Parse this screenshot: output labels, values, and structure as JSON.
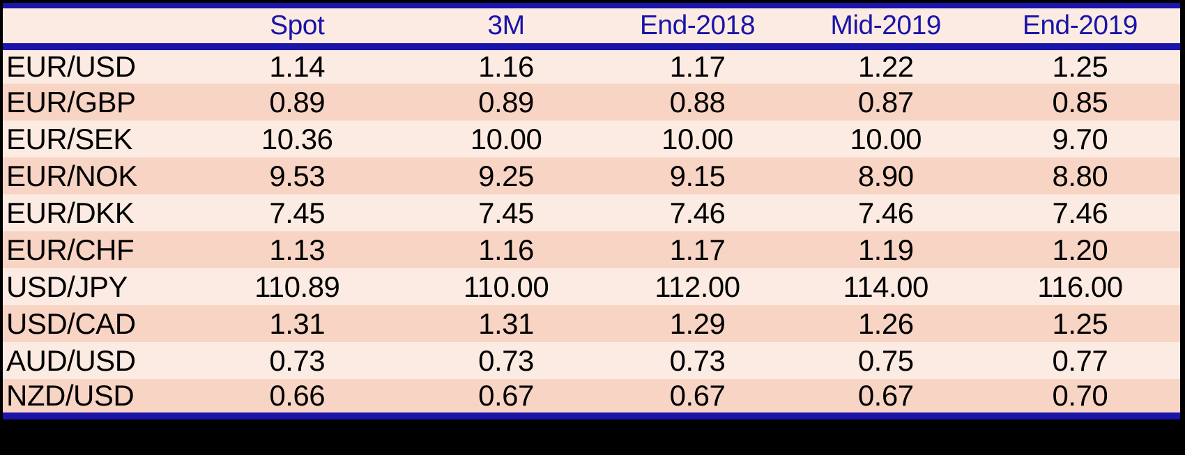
{
  "table": {
    "columns": [
      "Spot",
      "3M",
      "End-2018",
      "Mid-2019",
      "End-2019"
    ],
    "rows": [
      {
        "pair": "EUR/USD",
        "values": [
          "1.14",
          "1.16",
          "1.17",
          "1.22",
          "1.25"
        ]
      },
      {
        "pair": "EUR/GBP",
        "values": [
          "0.89",
          "0.89",
          "0.88",
          "0.87",
          "0.85"
        ]
      },
      {
        "pair": "EUR/SEK",
        "values": [
          "10.36",
          "10.00",
          "10.00",
          "10.00",
          "9.70"
        ]
      },
      {
        "pair": "EUR/NOK",
        "values": [
          "9.53",
          "9.25",
          "9.15",
          "8.90",
          "8.80"
        ]
      },
      {
        "pair": "EUR/DKK",
        "values": [
          "7.45",
          "7.45",
          "7.46",
          "7.46",
          "7.46"
        ]
      },
      {
        "pair": "EUR/CHF",
        "values": [
          "1.13",
          "1.16",
          "1.17",
          "1.19",
          "1.20"
        ]
      },
      {
        "pair": "USD/JPY",
        "values": [
          "110.89",
          "110.00",
          "112.00",
          "114.00",
          "116.00"
        ]
      },
      {
        "pair": "USD/CAD",
        "values": [
          "1.31",
          "1.31",
          "1.29",
          "1.26",
          "1.25"
        ]
      },
      {
        "pair": "AUD/USD",
        "values": [
          "0.73",
          "0.73",
          "0.73",
          "0.75",
          "0.77"
        ]
      },
      {
        "pair": "NZD/USD",
        "values": [
          "0.66",
          "0.67",
          "0.67",
          "0.67",
          "0.70"
        ]
      }
    ]
  },
  "colors": {
    "accent_blue": "#1a14a8",
    "header_text_blue": "#1a14a8",
    "row_light_peach": "#fcebe2",
    "row_dark_peach": "#f8d4c4",
    "cell_text": "#000000",
    "frame_background": "#000000"
  },
  "chart_data": {
    "type": "table",
    "columns": [
      "",
      "Spot",
      "3M",
      "End-2018",
      "Mid-2019",
      "End-2019"
    ],
    "rows": [
      [
        "EUR/USD",
        1.14,
        1.16,
        1.17,
        1.22,
        1.25
      ],
      [
        "EUR/GBP",
        0.89,
        0.89,
        0.88,
        0.87,
        0.85
      ],
      [
        "EUR/SEK",
        10.36,
        10.0,
        10.0,
        10.0,
        9.7
      ],
      [
        "EUR/NOK",
        9.53,
        9.25,
        9.15,
        8.9,
        8.8
      ],
      [
        "EUR/DKK",
        7.45,
        7.45,
        7.46,
        7.46,
        7.46
      ],
      [
        "EUR/CHF",
        1.13,
        1.16,
        1.17,
        1.19,
        1.2
      ],
      [
        "USD/JPY",
        110.89,
        110.0,
        112.0,
        114.0,
        116.0
      ],
      [
        "USD/CAD",
        1.31,
        1.31,
        1.29,
        1.26,
        1.25
      ],
      [
        "AUD/USD",
        0.73,
        0.73,
        0.73,
        0.75,
        0.77
      ],
      [
        "NZD/USD",
        0.66,
        0.67,
        0.67,
        0.67,
        0.7
      ]
    ],
    "layout": {
      "striped_rows": true,
      "grid": false,
      "header_rule_color": "#1a14a8"
    }
  }
}
